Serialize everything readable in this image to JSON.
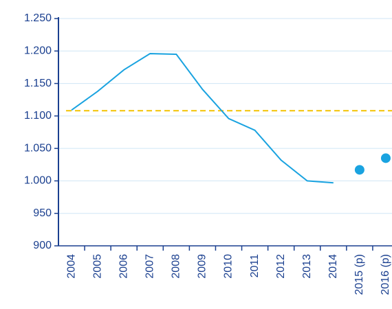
{
  "chart_data": {
    "type": "line",
    "categories": [
      "2004",
      "2005",
      "2006",
      "2007",
      "2008",
      "2009",
      "2010",
      "2011",
      "2012",
      "2013",
      "2014",
      "2015 (p)",
      "2016 (p)"
    ],
    "series": [
      {
        "color": "#1aa3e0",
        "style": "line",
        "values": [
          1109,
          1138,
          1171,
          1196,
          1195,
          1141,
          1096,
          1078,
          1032,
          1000,
          997,
          null,
          null
        ]
      },
      {
        "color": "#1aa3e0",
        "style": "dots",
        "values": [
          null,
          null,
          null,
          null,
          null,
          null,
          null,
          null,
          null,
          null,
          null,
          1017,
          1035
        ]
      }
    ],
    "reference_line": {
      "value": 1108,
      "color": "#f2c200"
    },
    "ylim": [
      900,
      1250
    ],
    "yticks": [
      900,
      950,
      {
        "value": 1000,
        "label": "1.000"
      },
      {
        "value": 1050,
        "label": "1.050"
      },
      {
        "value": 1100,
        "label": "1.100"
      },
      {
        "value": 1150,
        "label": "1.150"
      },
      {
        "value": 1200,
        "label": "1.200"
      },
      {
        "value": 1250,
        "label": "1.250"
      }
    ],
    "grid": true
  }
}
